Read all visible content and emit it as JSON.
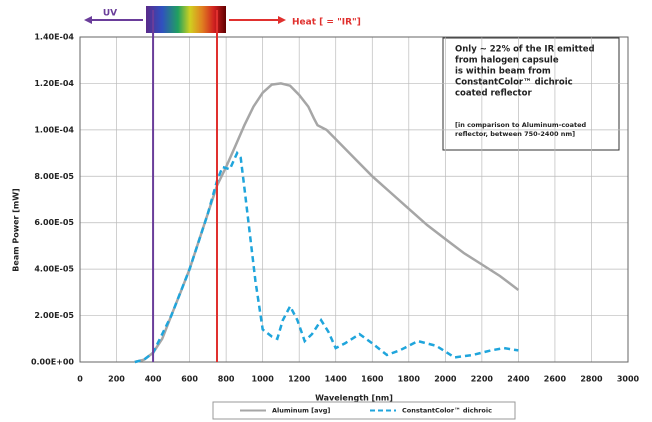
{
  "chart_data": {
    "type": "line",
    "x_label": "Wavelength [nm]",
    "y_label": "Beam Power [mW]",
    "xlim": [
      0,
      3000
    ],
    "xticks": [
      0,
      200,
      400,
      600,
      800,
      1000,
      1200,
      1400,
      1600,
      1800,
      2000,
      2200,
      2400,
      2600,
      2800,
      3000
    ],
    "ylim": [
      0,
      0.00014
    ],
    "yticks": [
      {
        "value": 0,
        "label": "0.00E+00"
      },
      {
        "value": 2e-05,
        "label": "2.00E-05"
      },
      {
        "value": 4e-05,
        "label": "4.00E-05"
      },
      {
        "value": 6e-05,
        "label": "6.00E-05"
      },
      {
        "value": 8e-05,
        "label": "8.00E-05"
      },
      {
        "value": 0.0001,
        "label": "1.00E-04"
      },
      {
        "value": 0.00012,
        "label": "1.20E-04"
      },
      {
        "value": 0.00014,
        "label": "1.40E-04"
      }
    ],
    "grid": true,
    "series": [
      {
        "name": "Aluminum [avg]",
        "color": "#a6a6a6",
        "dashed": false,
        "x": [
          300,
          350,
          400,
          450,
          500,
          550,
          600,
          650,
          700,
          750,
          800,
          850,
          900,
          950,
          1000,
          1050,
          1100,
          1150,
          1200,
          1250,
          1280,
          1300,
          1350,
          1400,
          1500,
          1600,
          1700,
          1800,
          1900,
          2000,
          2100,
          2200,
          2300,
          2400
        ],
        "values": [
          0,
          1e-06,
          4e-06,
          1e-05,
          2e-05,
          3e-05,
          4e-05,
          5.2e-05,
          6.4e-05,
          7.6e-05,
          8.4e-05,
          9.3e-05,
          0.000102,
          0.00011,
          0.000116,
          0.0001195,
          0.00012,
          0.000119,
          0.000115,
          0.00011,
          0.000105,
          0.000102,
          0.0001,
          9.6e-05,
          8.8e-05,
          8e-05,
          7.3e-05,
          6.6e-05,
          5.9e-05,
          5.3e-05,
          4.7e-05,
          4.2e-05,
          3.7e-05,
          3.1e-05
        ]
      },
      {
        "name": "ConstantColor™ dichroic",
        "color": "#1fa5dc",
        "dashed": true,
        "x": [
          300,
          350,
          400,
          500,
          600,
          700,
          750,
          780,
          820,
          860,
          880,
          900,
          930,
          960,
          1000,
          1050,
          1080,
          1110,
          1150,
          1190,
          1230,
          1270,
          1320,
          1360,
          1400,
          1450,
          1530,
          1600,
          1680,
          1750,
          1850,
          1950,
          2050,
          2150,
          2250,
          2320,
          2400
        ],
        "values": [
          0,
          1e-06,
          4e-06,
          2e-05,
          4e-05,
          6.4e-05,
          7.8e-05,
          8.4e-05,
          8.3e-05,
          9e-05,
          8.8e-05,
          7.5e-05,
          5.5e-05,
          3.5e-05,
          1.4e-05,
          1.1e-05,
          1e-05,
          1.8e-05,
          2.4e-05,
          1.8e-05,
          9e-06,
          1.2e-05,
          1.8e-05,
          1.3e-05,
          6e-06,
          8e-06,
          1.2e-05,
          8e-06,
          3e-06,
          5e-06,
          9e-06,
          7e-06,
          2e-06,
          3e-06,
          5e-06,
          6e-06,
          5e-06
        ]
      }
    ],
    "vlines": [
      {
        "x": 400,
        "color": "#6a3d9a"
      },
      {
        "x": 750,
        "color": "#e0302e"
      }
    ],
    "uv_label": "UV",
    "ir_label": "Heat [ = \"IR\"]",
    "annotation": [
      "Only ~ 22% of the IR emitted",
      "from halogen capsule",
      "is within beam from",
      "ConstantColor™ dichroic",
      "coated reflector"
    ],
    "note": [
      "[in comparison to Aluminum-coated",
      "reflector, between 750-2400 nm]"
    ]
  }
}
